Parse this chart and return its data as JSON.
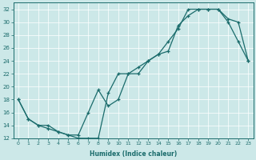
{
  "xlabel": "Humidex (Indice chaleur)",
  "ylabel": "",
  "bg_color": "#cce8e8",
  "line_color": "#1a6b6b",
  "xlim": [
    -0.5,
    23.5
  ],
  "ylim": [
    12,
    33
  ],
  "xticks": [
    0,
    1,
    2,
    3,
    4,
    5,
    6,
    7,
    8,
    9,
    10,
    11,
    12,
    13,
    14,
    15,
    16,
    17,
    18,
    19,
    20,
    21,
    22,
    23
  ],
  "yticks": [
    12,
    14,
    16,
    18,
    20,
    22,
    24,
    26,
    28,
    30,
    32
  ],
  "line1_x": [
    0,
    1,
    2,
    3,
    4,
    5,
    6,
    7,
    8,
    9,
    10,
    11,
    12,
    13,
    14,
    15,
    16,
    17,
    18,
    19,
    20,
    21,
    22,
    23
  ],
  "line1_y": [
    18,
    15,
    14,
    13.5,
    13,
    12.5,
    12,
    12,
    12,
    19,
    22,
    22,
    23,
    24,
    25,
    27,
    29,
    32,
    32,
    32,
    32,
    30,
    27,
    24
  ],
  "line2_x": [
    0,
    1,
    2,
    3,
    4,
    5,
    6,
    7,
    8,
    9,
    10,
    11,
    12,
    13,
    14,
    15,
    16,
    17,
    18,
    19,
    20,
    21,
    22,
    23
  ],
  "line2_y": [
    18,
    15,
    14,
    14,
    13,
    12.5,
    12.5,
    16,
    19.5,
    17,
    18,
    22,
    22,
    24,
    25,
    25.5,
    29.5,
    31,
    32,
    32,
    32,
    30.5,
    30,
    24
  ]
}
